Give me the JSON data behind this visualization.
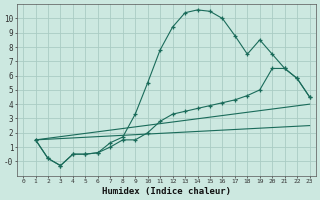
{
  "xlabel": "Humidex (Indice chaleur)",
  "background_color": "#cce8e0",
  "grid_color": "#aaccc4",
  "line_color": "#1a6b5a",
  "xlim": [
    -0.5,
    23.5
  ],
  "ylim": [
    -1.0,
    11.0
  ],
  "xticks": [
    0,
    1,
    2,
    3,
    4,
    5,
    6,
    7,
    8,
    9,
    10,
    11,
    12,
    13,
    14,
    15,
    16,
    17,
    18,
    19,
    20,
    21,
    22,
    23
  ],
  "yticks": [
    0,
    1,
    2,
    3,
    4,
    5,
    6,
    7,
    8,
    9,
    10
  ],
  "curve1_x": [
    1,
    2,
    3,
    4,
    5,
    6,
    7,
    8,
    9,
    10,
    11,
    12,
    13,
    14,
    15,
    16,
    17,
    18,
    19,
    20,
    21,
    22,
    23
  ],
  "curve1_y": [
    1.5,
    0.2,
    -0.3,
    0.5,
    0.5,
    0.6,
    1.3,
    1.7,
    3.3,
    5.5,
    7.8,
    9.4,
    10.4,
    10.6,
    10.5,
    10.0,
    8.8,
    7.5,
    8.5,
    7.5,
    6.5,
    5.8,
    4.5
  ],
  "curve2_x": [
    1,
    2,
    3,
    4,
    5,
    6,
    7,
    8,
    9,
    10,
    11,
    12,
    13,
    14,
    15,
    16,
    17,
    18,
    19,
    20,
    21,
    22,
    23
  ],
  "curve2_y": [
    1.5,
    0.2,
    -0.3,
    0.5,
    0.5,
    0.6,
    1.0,
    1.5,
    1.5,
    2.0,
    2.8,
    3.3,
    3.5,
    3.7,
    3.9,
    4.1,
    4.3,
    4.6,
    5.0,
    6.5,
    6.5,
    5.8,
    4.5
  ],
  "curve3_x": [
    1,
    23
  ],
  "curve3_y": [
    1.5,
    4.0
  ],
  "curve4_x": [
    1,
    23
  ],
  "curve4_y": [
    1.5,
    2.5
  ]
}
